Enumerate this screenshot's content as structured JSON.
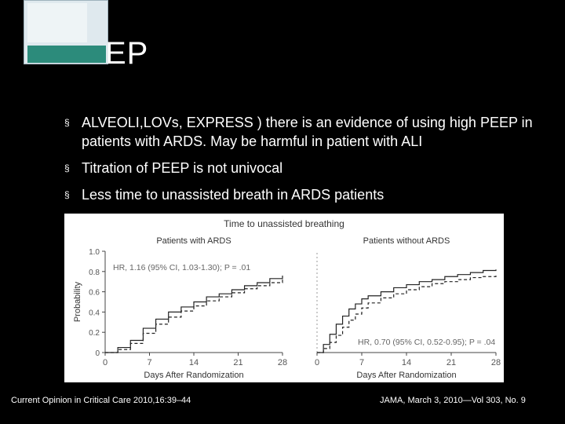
{
  "slide": {
    "title": "EP",
    "bullets": [
      "ALVEOLI,LOVs, EXPRESS ) there is an evidence of using high PEEP in patients with ARDS. May be harmful in patient with ALI",
      "Titration of PEEP is not univocal",
      "Less time to unassisted breath in ARDS patients"
    ],
    "bullet_marker": "§",
    "footer_left": "Current Opinion in Critical Care 2010,16:39–44",
    "footer_right": "JAMA, March 3, 2010—Vol 303, No. 9"
  },
  "chart_data": {
    "type": "line",
    "title": "Time to unassisted breathing",
    "panels": [
      {
        "subtitle": "Patients with ARDS",
        "annotation": "HR, 1.16 (95% CI, 1.03-1.30); P = .01",
        "xlabel": "Days After Randomization",
        "ylabel": "Probability",
        "xticks": [
          0,
          7,
          14,
          21,
          28
        ],
        "yticks": [
          "0",
          "0.2",
          "0.4",
          "0.6",
          "0.8",
          "1.0"
        ],
        "xlim": [
          0,
          28
        ],
        "ylim": [
          0,
          1.0
        ],
        "series": [
          {
            "x": [
              0,
              2,
              4,
              6,
              8,
              10,
              12,
              14,
              16,
              18,
              20,
              22,
              24,
              26,
              28
            ],
            "y": [
              0,
              0.05,
              0.12,
              0.24,
              0.33,
              0.4,
              0.45,
              0.5,
              0.55,
              0.58,
              0.62,
              0.66,
              0.69,
              0.73,
              0.76
            ]
          },
          {
            "x": [
              0,
              2,
              4,
              6,
              8,
              10,
              12,
              14,
              16,
              18,
              20,
              22,
              24,
              26,
              28
            ],
            "y": [
              0,
              0.03,
              0.09,
              0.19,
              0.28,
              0.35,
              0.41,
              0.46,
              0.51,
              0.55,
              0.59,
              0.63,
              0.66,
              0.69,
              0.72
            ]
          }
        ]
      },
      {
        "subtitle": "Patients without ARDS",
        "annotation": "HR, 0.70 (95% CI, 0.52-0.95); P = .04",
        "xlabel": "Days After Randomization",
        "xticks": [
          0,
          7,
          14,
          21,
          28
        ],
        "xlim": [
          0,
          28
        ],
        "ylim": [
          0,
          1.0
        ],
        "series": [
          {
            "x": [
              0,
              1,
              2,
              3,
              4,
              5,
              6,
              7,
              8,
              10,
              12,
              14,
              16,
              18,
              20,
              22,
              24,
              26,
              28
            ],
            "y": [
              0,
              0.08,
              0.18,
              0.28,
              0.36,
              0.43,
              0.48,
              0.53,
              0.56,
              0.6,
              0.64,
              0.67,
              0.7,
              0.72,
              0.75,
              0.77,
              0.79,
              0.81,
              0.82
            ]
          },
          {
            "x": [
              0,
              1,
              2,
              3,
              4,
              5,
              6,
              7,
              8,
              10,
              12,
              14,
              16,
              18,
              20,
              22,
              24,
              26,
              28
            ],
            "y": [
              0,
              0.04,
              0.1,
              0.17,
              0.25,
              0.32,
              0.38,
              0.44,
              0.49,
              0.54,
              0.58,
              0.62,
              0.65,
              0.68,
              0.7,
              0.72,
              0.74,
              0.75,
              0.76
            ]
          }
        ]
      }
    ]
  }
}
